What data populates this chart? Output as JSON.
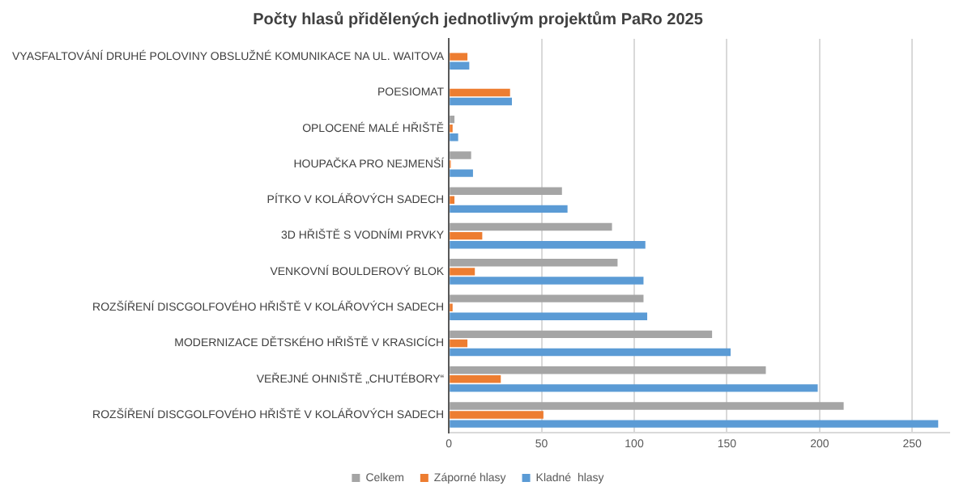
{
  "chart_data": {
    "type": "bar",
    "orientation": "horizontal",
    "title": "Počty hlasů přidělených jednotlivým projektům PaRo 2025",
    "categories": [
      "VYASFALTOVÁNÍ DRUHÉ POLOVINY OBSLUŽNÉ KOMUNIKACE NA UL. WAITOVA",
      "POESIOMAT",
      "OPLOCENÉ MALÉ HŘIŠTĚ",
      "HOUPAČKA PRO NEJMENŠÍ",
      "PÍTKO V KOLÁŘOVÝCH SADECH",
      "3D HŘIŠTĚ S VODNÍMI PRVKY",
      "VENKOVNÍ BOULDEROVÝ BLOK",
      "ROZŠÍŘENÍ DISCGOLFOVÉHO HŘIŠTĚ V KOLÁŘOVÝCH SADECH",
      "MODERNIZACE DĚTSKÉHO HŘIŠTĚ V KRASICÍCH",
      "VEŘEJNÉ OHNIŠTĚ „CHUTÉBORY“",
      "ROZŠÍŘENÍ DISCGOLFOVÉHO HŘIŠTĚ V KOLÁŘOVÝCH SADECH"
    ],
    "series": [
      {
        "name": "Celkem",
        "color": "#a5a5a5",
        "values": [
          null,
          null,
          3,
          12,
          61,
          88,
          91,
          105,
          142,
          171,
          213
        ]
      },
      {
        "name": "Záporné hlasy",
        "color": "#ed7d31",
        "values": [
          10,
          33,
          2,
          1,
          3,
          18,
          14,
          2,
          10,
          28,
          51
        ]
      },
      {
        "name": "Kladné  hlasy",
        "color": "#5b9bd5",
        "values": [
          11,
          34,
          5,
          13,
          64,
          106,
          105,
          107,
          152,
          199,
          264
        ]
      }
    ],
    "xlim": [
      0,
      270
    ],
    "xticks": [
      0,
      50,
      100,
      150,
      200,
      250
    ],
    "grid": "x",
    "legend": "bottom"
  }
}
